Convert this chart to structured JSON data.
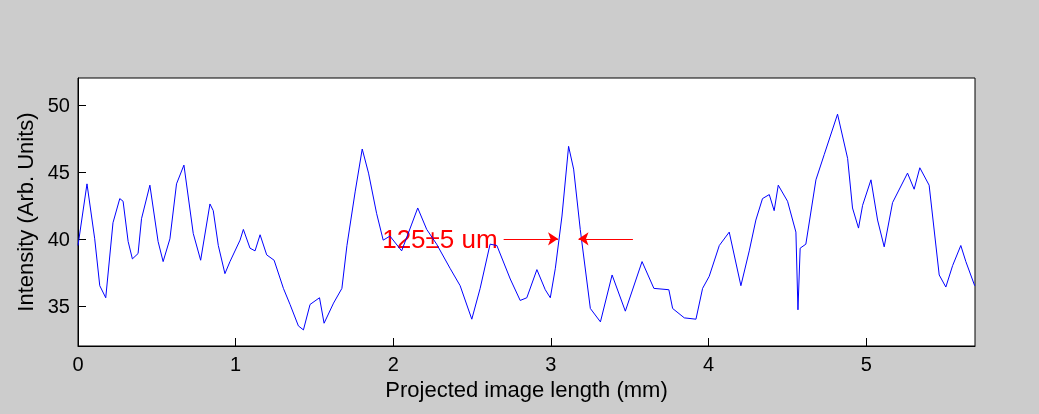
{
  "chart_data": {
    "type": "line",
    "xlabel": "Projected image length (mm)",
    "ylabel": "Intensity (Arb. Units)",
    "xlim": [
      0,
      5.69
    ],
    "xticks": [
      0,
      1,
      2,
      3,
      4,
      5
    ],
    "ylim": [
      32,
      52
    ],
    "yticks": [
      35,
      40,
      45,
      50
    ],
    "grid": false,
    "marker": "none",
    "line_style": "solid",
    "annotations": [
      {
        "text": "125±5 um",
        "x": 3.045,
        "y": 40
      }
    ],
    "series": [
      {
        "color": "#0000ff",
        "x": [
          0,
          0.057,
          0.106,
          0.138,
          0.176,
          0.222,
          0.265,
          0.286,
          0.318,
          0.345,
          0.381,
          0.403,
          0.456,
          0.508,
          0.54,
          0.583,
          0.625,
          0.672,
          0.731,
          0.778,
          0.837,
          0.858,
          0.89,
          0.932,
          0.964,
          1.028,
          1.049,
          1.091,
          1.123,
          1.155,
          1.197,
          1.244,
          1.303,
          1.345,
          1.398,
          1.43,
          1.472,
          1.532,
          1.561,
          1.621,
          1.674,
          1.706,
          1.758,
          1.803,
          1.843,
          1.894,
          1.936,
          1.979,
          2.053,
          2.117,
          2.155,
          2.212,
          2.275,
          2.36,
          2.424,
          2.498,
          2.551,
          2.614,
          2.657,
          2.742,
          2.805,
          2.847,
          2.911,
          2.964,
          2.996,
          3.028,
          3.07,
          3.112,
          3.144,
          3.186,
          3.25,
          3.314,
          3.388,
          3.472,
          3.578,
          3.653,
          3.748,
          3.772,
          3.846,
          3.92,
          3.962,
          4.004,
          4.068,
          4.131,
          4.205,
          4.258,
          4.3,
          4.342,
          4.385,
          4.416,
          4.442,
          4.501,
          4.554,
          4.567,
          4.581,
          4.617,
          4.681,
          4.734,
          4.818,
          4.882,
          4.913,
          4.951,
          4.977,
          5.03,
          5.072,
          5.114,
          5.167,
          5.262,
          5.304,
          5.34,
          5.399,
          5.463,
          5.505,
          5.548,
          5.6,
          5.632,
          5.688
        ],
        "values": [
          39.5,
          44.1,
          40,
          36.5,
          35.6,
          41.2,
          43,
          42.8,
          39.8,
          38.5,
          38.9,
          41.5,
          44,
          39.8,
          38.3,
          40,
          44.1,
          45.5,
          40.4,
          38.4,
          42.6,
          42.1,
          39.5,
          37.4,
          38.3,
          39.9,
          40.7,
          39.3,
          39.1,
          40.3,
          38.8,
          38.4,
          36.3,
          35.1,
          33.5,
          33.2,
          35.1,
          35.6,
          33.7,
          35.2,
          36.3,
          39.5,
          43.5,
          46.7,
          44.9,
          41.9,
          39.9,
          40.2,
          39.1,
          41.1,
          42.3,
          40.7,
          39.6,
          37.8,
          36.5,
          34,
          36.3,
          39.6,
          39.5,
          37,
          35.4,
          35.6,
          37.7,
          36.2,
          35.6,
          37.8,
          41.7,
          46.9,
          45.2,
          40.7,
          34.8,
          33.8,
          37.3,
          34.6,
          38.3,
          36.3,
          36.2,
          34.8,
          34.1,
          34,
          36.3,
          37.2,
          39.5,
          40.5,
          36.5,
          39.1,
          41.4,
          43,
          43.3,
          42.1,
          44,
          42.8,
          40.5,
          34.7,
          39.3,
          39.6,
          44.4,
          46.3,
          49.3,
          46,
          42.3,
          40.8,
          42.5,
          44.4,
          41.4,
          39.4,
          42.7,
          44.9,
          43.7,
          45.3,
          44,
          37.3,
          36.4,
          38,
          39.5,
          38.3,
          36.5
        ]
      }
    ]
  }
}
